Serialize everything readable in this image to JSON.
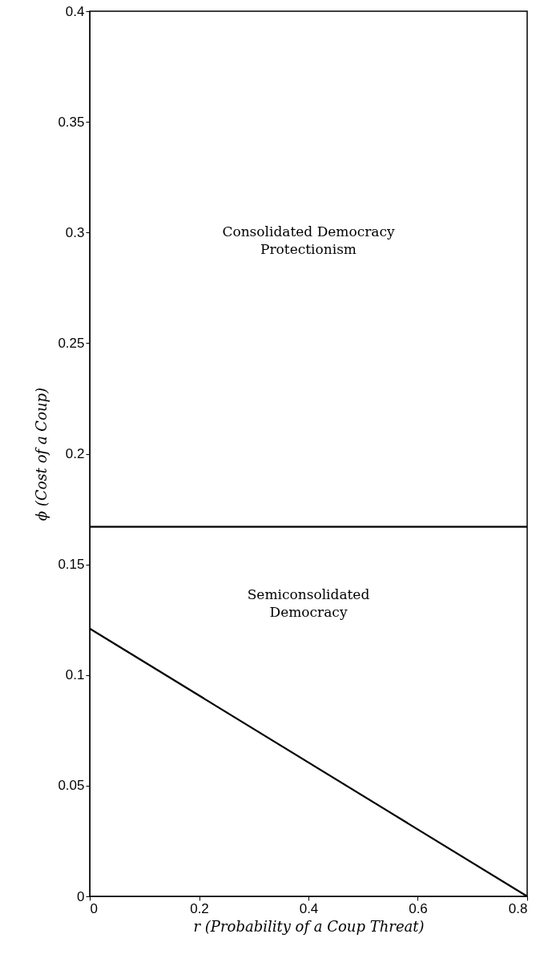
{
  "chart_data": {
    "type": "line",
    "xlabel": "r (Probability of a Coup Threat)",
    "ylabel": "ϕ (Cost of a Coup)",
    "x": [
      0,
      0.8
    ],
    "series": [
      {
        "color": "#000000",
        "values": [
          0.167,
          0.167
        ]
      },
      {
        "color": "#000000",
        "values": [
          0.121,
          0
        ]
      }
    ],
    "xlim": [
      0,
      0.8
    ],
    "xticks": [
      0,
      0.2,
      0.4,
      0.6,
      0.8
    ],
    "ylim": [
      0,
      0.4
    ],
    "yticks": [
      0,
      0.05,
      0.1,
      0.15,
      0.2,
      0.25,
      0.3,
      0.35,
      0.4
    ],
    "annotations": [
      "Consolidated Democracy\nProtectionism",
      "Semiconsolidated\nDemocracy"
    ],
    "grid": false,
    "marker": "none",
    "line_style": "solid"
  }
}
